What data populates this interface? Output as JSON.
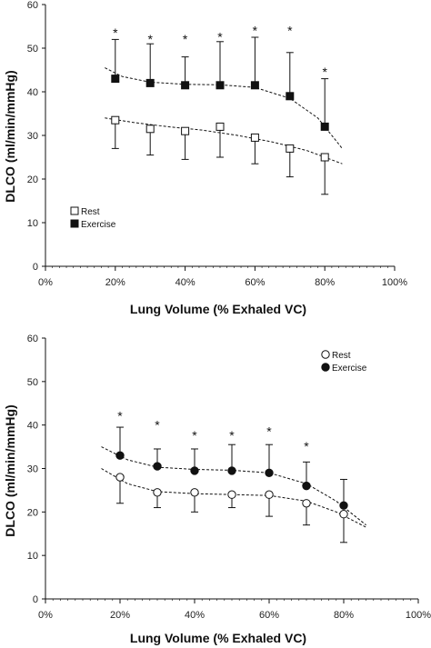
{
  "chart_data": [
    {
      "type": "scatter",
      "xlabel": "Lung Volume (% Exhaled VC)",
      "ylabel": "DLCO (ml/min/mmHg)",
      "xlim": [
        0,
        100
      ],
      "ylim": [
        0,
        60
      ],
      "x_ticks": [
        "0%",
        "20%",
        "40%",
        "60%",
        "80%",
        "100%"
      ],
      "y_ticks": [
        "0",
        "10",
        "20",
        "30",
        "40",
        "50",
        "60"
      ],
      "legend_position": "bottom-left",
      "grid": false,
      "series": [
        {
          "name": "Rest",
          "marker": "open-square",
          "x": [
            20,
            30,
            40,
            50,
            60,
            70,
            80
          ],
          "y": [
            33.5,
            31.5,
            31.0,
            32.0,
            29.5,
            27.0,
            25.0
          ],
          "err_minus": [
            6.5,
            6.0,
            6.5,
            7.0,
            6.0,
            6.5,
            8.5
          ],
          "fit_curve": {
            "x": [
              17,
              25,
              35,
              45,
              55,
              65,
              75,
              85
            ],
            "y": [
              34,
              33,
              32,
              31.2,
              30,
              28.5,
              26.5,
              23.5
            ]
          }
        },
        {
          "name": "Exercise",
          "marker": "filled-square",
          "x": [
            20,
            30,
            40,
            50,
            60,
            70,
            80
          ],
          "y": [
            43.0,
            42.0,
            41.5,
            41.5,
            41.5,
            39.0,
            32.0
          ],
          "err_plus": [
            9.0,
            9.0,
            6.5,
            10.0,
            11.0,
            10.0,
            11.0
          ],
          "fit_curve": {
            "x": [
              17,
              22,
              30,
              40,
              50,
              60,
              70,
              78,
              85
            ],
            "y": [
              45.5,
              43.5,
              42.2,
              41.7,
              41.6,
              41,
              38.5,
              34,
              27
            ]
          }
        }
      ],
      "annotations": [
        {
          "text": "*",
          "x": 20,
          "y": 54
        },
        {
          "text": "*",
          "x": 30,
          "y": 52.5
        },
        {
          "text": "*",
          "x": 40,
          "y": 52.5
        },
        {
          "text": "*",
          "x": 50,
          "y": 53
        },
        {
          "text": "*",
          "x": 60,
          "y": 54.5
        },
        {
          "text": "*",
          "x": 70,
          "y": 54.5
        },
        {
          "text": "*",
          "x": 80,
          "y": 45
        }
      ]
    },
    {
      "type": "scatter",
      "xlabel": "Lung Volume (% Exhaled VC)",
      "ylabel": "DLCO (ml/min/mmHg)",
      "xlim": [
        0,
        100
      ],
      "ylim": [
        0,
        60
      ],
      "x_ticks": [
        "0%",
        "20%",
        "40%",
        "60%",
        "80%",
        "100%"
      ],
      "y_ticks": [
        "0",
        "10",
        "20",
        "30",
        "40",
        "50",
        "60"
      ],
      "legend_position": "top-right",
      "grid": false,
      "series": [
        {
          "name": "Rest",
          "marker": "open-circle",
          "x": [
            20,
            30,
            40,
            50,
            60,
            70,
            80
          ],
          "y": [
            28.0,
            24.5,
            24.5,
            24.0,
            24.0,
            22.0,
            19.5
          ],
          "err_minus": [
            6.0,
            3.5,
            4.5,
            3.0,
            5.0,
            5.0,
            6.5
          ],
          "fit_curve": {
            "x": [
              15,
              22,
              30,
              40,
              50,
              60,
              70,
              78,
              86
            ],
            "y": [
              30,
              26.5,
              24.7,
              24.2,
              24,
              23.8,
              22.5,
              20,
              16.5
            ]
          }
        },
        {
          "name": "Exercise",
          "marker": "filled-circle",
          "x": [
            20,
            30,
            40,
            50,
            60,
            70,
            80
          ],
          "y": [
            33.0,
            30.5,
            29.5,
            29.5,
            29.0,
            26.0,
            21.5
          ],
          "err_plus": [
            6.5,
            4.0,
            5.0,
            6.0,
            6.5,
            5.5,
            6.0
          ],
          "fit_curve": {
            "x": [
              15,
              22,
              30,
              40,
              50,
              60,
              70,
              78,
              86
            ],
            "y": [
              35,
              32,
              30.3,
              29.8,
              29.6,
              29,
              26.5,
              22.5,
              17
            ]
          }
        }
      ],
      "annotations": [
        {
          "text": "*",
          "x": 20,
          "y": 42.5
        },
        {
          "text": "*",
          "x": 30,
          "y": 40.5
        },
        {
          "text": "*",
          "x": 40,
          "y": 38
        },
        {
          "text": "*",
          "x": 50,
          "y": 38
        },
        {
          "text": "*",
          "x": 60,
          "y": 39
        },
        {
          "text": "*",
          "x": 70,
          "y": 35.5
        }
      ]
    }
  ]
}
